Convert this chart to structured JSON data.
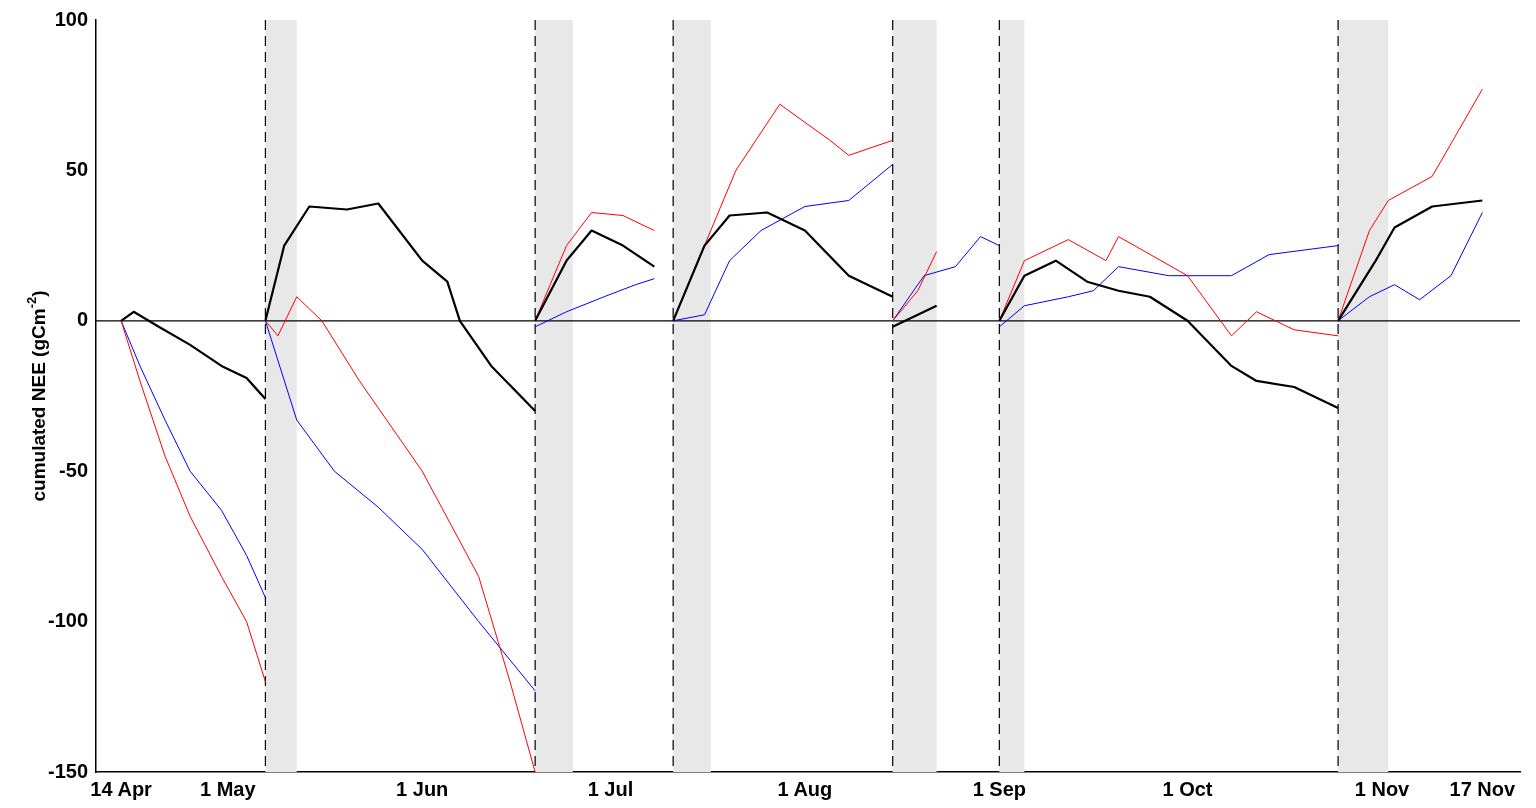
{
  "chart_data": {
    "type": "line",
    "ylabel": "cumulated NEE (gCm$^{-2}$)",
    "marker": "none",
    "grid": false,
    "legend": false,
    "xlim": [
      "--04-10",
      "--11-23"
    ],
    "xticks": [
      {
        "value": "--04-14",
        "label": "14 Apr"
      },
      {
        "value": "--05-01",
        "label": "1 May"
      },
      {
        "value": "--06-01",
        "label": "1 Jun"
      },
      {
        "value": "--07-01",
        "label": "1 Jul"
      },
      {
        "value": "--08-01",
        "label": "1 Aug"
      },
      {
        "value": "--09-01",
        "label": "1 Sep"
      },
      {
        "value": "--10-01",
        "label": "1 Oct"
      },
      {
        "value": "--11-01",
        "label": "1 Nov"
      },
      {
        "value": "--11-17",
        "label": "17 Nov"
      }
    ],
    "ylim": [
      -150,
      100
    ],
    "yticks": [
      -150,
      -100,
      -50,
      0,
      50,
      100
    ],
    "bands": [
      {
        "axis": "x",
        "from": "--05-07",
        "to": "--05-12",
        "color": "#e8e8e8"
      },
      {
        "axis": "x",
        "from": "--06-19",
        "to": "--06-25",
        "color": "#e8e8e8"
      },
      {
        "axis": "x",
        "from": "--07-11",
        "to": "--07-17",
        "color": "#e8e8e8"
      },
      {
        "axis": "x",
        "from": "--08-15",
        "to": "--08-22",
        "color": "#e8e8e8"
      },
      {
        "axis": "x",
        "from": "--09-01",
        "to": "--09-05",
        "color": "#e8e8e8"
      },
      {
        "axis": "x",
        "from": "--10-25",
        "to": "--11-02",
        "color": "#e8e8e8"
      }
    ],
    "ref_lines": [
      {
        "axis": "y",
        "value": 0,
        "color": "#000000",
        "line_style": "solid"
      },
      {
        "axis": "x",
        "value": "--05-07",
        "color": "#000000",
        "line_style": "dashed"
      },
      {
        "axis": "x",
        "value": "--06-19",
        "color": "#000000",
        "line_style": "dashed"
      },
      {
        "axis": "x",
        "value": "--07-11",
        "color": "#000000",
        "line_style": "dashed"
      },
      {
        "axis": "x",
        "value": "--08-15",
        "color": "#000000",
        "line_style": "dashed"
      },
      {
        "axis": "x",
        "value": "--09-01",
        "color": "#000000",
        "line_style": "dashed"
      },
      {
        "axis": "x",
        "value": "--10-25",
        "color": "#000000",
        "line_style": "dashed"
      }
    ],
    "series": [
      {
        "color": "#000000",
        "x": [
          "--04-14",
          "--04-16",
          "--04-20",
          "--04-25",
          "--04-30",
          "--05-04",
          "--05-07",
          null,
          "--05-07",
          "--05-10",
          "--05-14",
          "--05-20",
          "--05-25",
          "--06-01",
          "--06-05",
          "--06-07",
          "--06-12",
          "--06-19",
          null,
          "--06-19",
          "--06-24",
          "--06-28",
          "--07-03",
          "--07-08",
          null,
          "--07-11",
          "--07-16",
          "--07-20",
          "--07-26",
          "--08-01",
          "--08-08",
          "--08-15",
          null,
          "--08-15",
          "--08-19",
          "--08-22",
          null,
          "--09-01",
          "--09-05",
          "--09-10",
          "--09-15",
          "--09-20",
          "--09-25",
          "--10-01",
          "--10-08",
          "--10-12",
          "--10-18",
          "--10-25",
          null,
          "--10-25",
          "--10-31",
          "--11-03",
          "--11-09",
          "--11-17"
        ],
        "values": [
          0,
          3,
          -2,
          -8,
          -15,
          -19,
          -26,
          null,
          0,
          25,
          38,
          37,
          39,
          20,
          13,
          0,
          -15,
          -30,
          null,
          0,
          20,
          30,
          25,
          18,
          null,
          0,
          25,
          35,
          36,
          30,
          15,
          8,
          null,
          -2,
          2,
          5,
          null,
          0,
          15,
          20,
          13,
          10,
          8,
          0,
          -15,
          -20,
          -22,
          -29,
          null,
          0,
          20,
          31,
          38,
          40
        ]
      },
      {
        "color": "#ff0000",
        "x": [
          "--04-14",
          "--04-17",
          "--04-21",
          "--04-25",
          "--04-30",
          "--05-04",
          "--05-07",
          null,
          "--05-07",
          "--05-09",
          "--05-12",
          "--05-16",
          "--05-22",
          "--06-01",
          "--06-10",
          "--06-15",
          "--06-19",
          null,
          "--06-19",
          "--06-24",
          "--06-28",
          "--07-03",
          "--07-08",
          null,
          "--07-11",
          "--07-16",
          "--07-21",
          "--07-28",
          "--08-05",
          "--08-08",
          "--08-15",
          null,
          "--08-15",
          "--08-19",
          "--08-22",
          null,
          "--09-01",
          "--09-05",
          "--09-12",
          "--09-18",
          "--09-20",
          "--10-01",
          "--10-08",
          "--10-12",
          "--10-18",
          "--10-25",
          null,
          "--10-25",
          "--10-30",
          "--11-02",
          "--11-09",
          "--11-17"
        ],
        "values": [
          0,
          -20,
          -45,
          -65,
          -85,
          -100,
          -120,
          null,
          0,
          -5,
          8,
          0,
          -20,
          -50,
          -85,
          -120,
          -150,
          null,
          0,
          25,
          36,
          35,
          30,
          null,
          0,
          25,
          50,
          72,
          60,
          55,
          60,
          null,
          0,
          10,
          23,
          null,
          0,
          20,
          27,
          20,
          28,
          15,
          -5,
          3,
          -3,
          -5,
          null,
          0,
          30,
          40,
          48,
          77
        ]
      },
      {
        "color": "#0000ff",
        "x": [
          "--04-14",
          "--04-17",
          "--04-21",
          "--04-25",
          "--04-30",
          "--05-04",
          "--05-07",
          null,
          "--05-07",
          "--05-12",
          "--05-18",
          "--05-25",
          "--06-01",
          "--06-10",
          "--06-19",
          null,
          "--06-19",
          "--06-24",
          "--06-30",
          "--07-05",
          "--07-08",
          null,
          "--07-11",
          "--07-16",
          "--07-20",
          "--07-25",
          "--08-01",
          "--08-08",
          "--08-15",
          null,
          "--08-15",
          "--08-20",
          "--08-25",
          "--08-29",
          "--09-01",
          null,
          "--09-01",
          "--09-05",
          "--09-12",
          "--09-16",
          "--09-20",
          "--09-28",
          "--10-08",
          "--10-14",
          "--10-25",
          null,
          "--10-25",
          "--10-30",
          "--11-03",
          "--11-07",
          "--11-12",
          "--11-17"
        ],
        "values": [
          0,
          -15,
          -33,
          -50,
          -63,
          -78,
          -92,
          null,
          0,
          -33,
          -50,
          -62,
          -76,
          -100,
          -123,
          null,
          -2,
          3,
          8,
          12,
          14,
          null,
          0,
          2,
          20,
          30,
          38,
          40,
          52,
          null,
          0,
          15,
          18,
          28,
          25,
          null,
          -2,
          5,
          8,
          10,
          18,
          15,
          15,
          22,
          25,
          null,
          0,
          8,
          12,
          7,
          15,
          36
        ]
      }
    ]
  }
}
